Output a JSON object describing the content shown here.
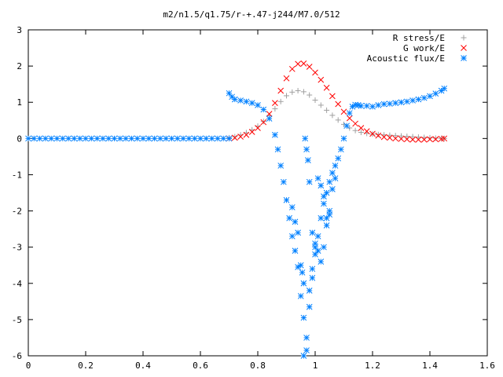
{
  "chart_data": {
    "type": "scatter",
    "title": "m2/n1.5/q1.75/r-+.47-j244/M7.0/512",
    "xlim": [
      0,
      1.6
    ],
    "ylim": [
      -6,
      3
    ],
    "xticks": [
      0,
      0.2,
      0.4,
      0.6,
      0.8,
      1,
      1.2,
      1.4,
      1.6
    ],
    "xtick_labels": [
      "0",
      "0.2",
      "0.4",
      "0.6",
      "0.8",
      "1",
      "1.2",
      "1.4",
      "1.6"
    ],
    "yticks": [
      -6,
      -5,
      -4,
      -3,
      -2,
      -1,
      0,
      1,
      2,
      3
    ],
    "ytick_labels": [
      "-6",
      "-5",
      "-4",
      "-3",
      "-2",
      "-1",
      "0",
      "1",
      "2",
      "3"
    ],
    "grid": false,
    "legend_position": "top-right",
    "series": [
      {
        "name": "R stress/E",
        "marker": "plus",
        "color": "#a0a0a0",
        "x": [
          0.7,
          0.72,
          0.74,
          0.76,
          0.78,
          0.8,
          0.82,
          0.84,
          0.86,
          0.88,
          0.9,
          0.92,
          0.94,
          0.96,
          0.98,
          1.0,
          1.02,
          1.04,
          1.06,
          1.08,
          1.1,
          1.12,
          1.14,
          1.16,
          1.18,
          1.2,
          1.22,
          1.24,
          1.26,
          1.28,
          1.3,
          1.32,
          1.34,
          1.36,
          1.38,
          1.4,
          1.42,
          1.44,
          1.45
        ],
        "y": [
          0.02,
          0.05,
          0.1,
          0.16,
          0.24,
          0.34,
          0.47,
          0.63,
          0.82,
          1.02,
          1.18,
          1.28,
          1.32,
          1.29,
          1.2,
          1.06,
          0.92,
          0.78,
          0.64,
          0.51,
          0.39,
          0.29,
          0.22,
          0.17,
          0.14,
          0.12,
          0.11,
          0.1,
          0.09,
          0.08,
          0.07,
          0.06,
          0.05,
          0.04,
          0.03,
          0.02,
          0.01,
          0.0,
          0.0
        ]
      },
      {
        "name": "G work/E",
        "marker": "cross",
        "color": "#ff0000",
        "x": [
          0.7,
          0.72,
          0.74,
          0.76,
          0.78,
          0.8,
          0.82,
          0.84,
          0.86,
          0.88,
          0.9,
          0.92,
          0.94,
          0.96,
          0.98,
          1.0,
          1.02,
          1.04,
          1.06,
          1.08,
          1.1,
          1.12,
          1.14,
          1.16,
          1.18,
          1.2,
          1.22,
          1.24,
          1.26,
          1.28,
          1.3,
          1.32,
          1.34,
          1.36,
          1.38,
          1.4,
          1.42,
          1.44,
          1.45
        ],
        "y": [
          0.0,
          0.02,
          0.05,
          0.1,
          0.18,
          0.29,
          0.45,
          0.68,
          0.98,
          1.32,
          1.66,
          1.92,
          2.06,
          2.07,
          1.98,
          1.82,
          1.62,
          1.4,
          1.17,
          0.95,
          0.74,
          0.56,
          0.41,
          0.29,
          0.2,
          0.13,
          0.08,
          0.04,
          0.02,
          0.0,
          -0.01,
          -0.02,
          -0.03,
          -0.03,
          -0.03,
          -0.02,
          -0.02,
          -0.01,
          0.0
        ]
      },
      {
        "name": "Acoustic flux/E",
        "marker": "star",
        "color": "#0080ff",
        "x": [
          0.0,
          0.02,
          0.04,
          0.06,
          0.08,
          0.1,
          0.12,
          0.14,
          0.16,
          0.18,
          0.2,
          0.22,
          0.24,
          0.26,
          0.28,
          0.3,
          0.32,
          0.34,
          0.36,
          0.38,
          0.4,
          0.42,
          0.44,
          0.46,
          0.48,
          0.5,
          0.52,
          0.54,
          0.56,
          0.58,
          0.6,
          0.62,
          0.64,
          0.66,
          0.68,
          0.7,
          0.7,
          0.71,
          0.72,
          0.74,
          0.76,
          0.78,
          0.8,
          0.82,
          0.84,
          0.86,
          0.87,
          0.88,
          0.89,
          0.9,
          0.91,
          0.92,
          0.93,
          0.94,
          0.95,
          0.96,
          0.97,
          0.98,
          0.99,
          1.0,
          1.01,
          1.02,
          1.03,
          1.04,
          1.05,
          1.06,
          1.07,
          1.08,
          1.09,
          1.1,
          1.11,
          1.12,
          1.13,
          1.14,
          1.15,
          1.16,
          1.18,
          1.2,
          1.22,
          1.24,
          1.26,
          1.28,
          1.3,
          1.32,
          1.34,
          1.36,
          1.38,
          1.4,
          1.42,
          1.44,
          1.45,
          0.92,
          0.93,
          0.94,
          0.95,
          0.955,
          0.96,
          0.965,
          0.97,
          0.975,
          0.98,
          0.99,
          1.0,
          1.01,
          1.02,
          1.03,
          1.04,
          1.05,
          0.96,
          0.97,
          0.98,
          0.99,
          1.0,
          1.01,
          1.02,
          1.03,
          1.04,
          1.05,
          1.06,
          1.07
        ],
        "y": [
          0.0,
          0.0,
          0.0,
          0.0,
          0.0,
          0.0,
          0.0,
          0.0,
          0.0,
          0.0,
          0.0,
          0.0,
          0.0,
          0.0,
          0.0,
          0.0,
          0.0,
          0.0,
          0.0,
          0.0,
          0.0,
          0.0,
          0.0,
          0.0,
          0.0,
          0.0,
          0.0,
          0.0,
          0.0,
          0.0,
          0.0,
          0.0,
          0.0,
          0.0,
          0.0,
          0.0,
          1.25,
          1.15,
          1.08,
          1.05,
          1.02,
          0.98,
          0.92,
          0.8,
          0.55,
          0.1,
          -0.3,
          -0.75,
          -1.2,
          -1.7,
          -2.2,
          -2.7,
          -3.1,
          -3.55,
          -4.35,
          -4.95,
          -5.85,
          -4.65,
          -3.85,
          -3.2,
          -2.7,
          -2.2,
          -1.8,
          -1.5,
          -1.2,
          -0.95,
          -0.75,
          -0.55,
          -0.3,
          0.0,
          0.35,
          0.7,
          0.88,
          0.93,
          0.92,
          0.9,
          0.9,
          0.88,
          0.92,
          0.95,
          0.96,
          0.98,
          1.0,
          1.02,
          1.05,
          1.08,
          1.12,
          1.17,
          1.24,
          1.32,
          1.38,
          -1.9,
          -2.3,
          -2.6,
          -3.5,
          -3.7,
          -4.0,
          0.0,
          -0.3,
          -0.6,
          -1.2,
          -2.6,
          -2.9,
          -3.1,
          -3.4,
          -3.0,
          -2.4,
          -2.1,
          -6.0,
          -5.5,
          -4.2,
          -3.6,
          -3.0,
          -1.1,
          -1.3,
          -1.6,
          -2.2,
          -2.0,
          -1.4,
          -1.1
        ]
      }
    ]
  }
}
